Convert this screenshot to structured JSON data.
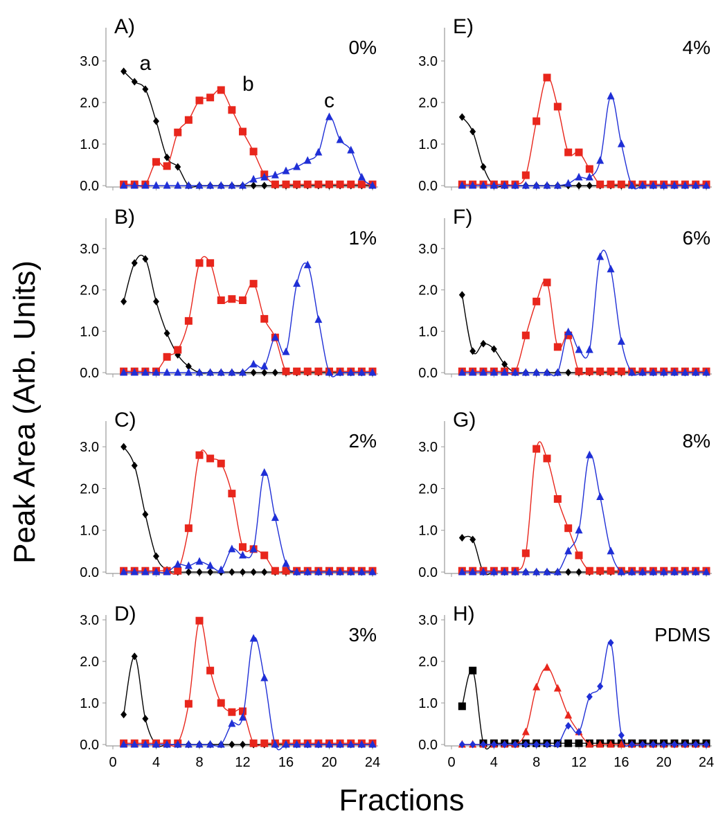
{
  "figure": {
    "ylabel": "Peak Area (Arb. Units)",
    "xlabel": "Fractions"
  },
  "colors": {
    "a": "#000000",
    "b": "#e8261c",
    "c": "#1f2fd6"
  },
  "chart_data": [
    {
      "type": "line",
      "label": "A)",
      "condition": "0%",
      "x": [
        1,
        2,
        3,
        4,
        5,
        6,
        7,
        8,
        9,
        10,
        11,
        12,
        13,
        14,
        15,
        16,
        17,
        18,
        19,
        20,
        21,
        22,
        23,
        24
      ],
      "ylim": [
        0,
        3.3
      ],
      "annotations": [
        {
          "text": "a",
          "x": 3,
          "y": 2.95
        },
        {
          "text": "b",
          "x": 12.5,
          "y": 2.45
        },
        {
          "text": "c",
          "x": 20,
          "y": 2.05
        }
      ],
      "series": [
        {
          "id": "a",
          "marker": "diamond",
          "values": [
            2.75,
            2.5,
            2.32,
            1.55,
            0.68,
            0.45,
            0,
            0,
            0,
            0,
            0,
            0,
            0,
            0,
            0,
            0,
            0,
            0,
            0,
            0,
            0,
            0,
            0,
            0
          ]
        },
        {
          "id": "b",
          "marker": "square",
          "values": [
            0.03,
            0.03,
            0.03,
            0.57,
            0.47,
            1.28,
            1.58,
            2.05,
            2.12,
            2.3,
            1.82,
            1.3,
            0.82,
            0.27,
            0.03,
            0.03,
            0.03,
            0.03,
            0.03,
            0.03,
            0.03,
            0.03,
            0.03,
            0.03
          ]
        },
        {
          "id": "c",
          "marker": "triangle",
          "values": [
            0,
            0,
            0,
            0,
            0,
            0,
            0,
            0,
            0,
            0,
            0,
            0,
            0.15,
            0.2,
            0.25,
            0.35,
            0.45,
            0.6,
            0.8,
            1.65,
            1.1,
            0.85,
            0.2,
            0
          ]
        }
      ]
    },
    {
      "type": "line",
      "label": "E)",
      "condition": "4%",
      "x": [
        1,
        2,
        3,
        4,
        5,
        6,
        7,
        8,
        9,
        10,
        11,
        12,
        13,
        14,
        15,
        16,
        17,
        18,
        19,
        20,
        21,
        22,
        23,
        24
      ],
      "ylim": [
        0,
        3.3
      ],
      "series": [
        {
          "id": "a",
          "marker": "diamond",
          "values": [
            1.65,
            1.3,
            0.45,
            0,
            0,
            0,
            0,
            0,
            0,
            0,
            0,
            0,
            0,
            0,
            0,
            0,
            0,
            0,
            0,
            0,
            0,
            0,
            0,
            0
          ]
        },
        {
          "id": "b",
          "marker": "square",
          "values": [
            0.03,
            0.03,
            0.03,
            0.03,
            0.03,
            0.03,
            0.25,
            1.55,
            2.6,
            1.9,
            0.8,
            0.8,
            0.4,
            0.03,
            0.03,
            0.03,
            0.03,
            0.03,
            0.03,
            0.03,
            0.03,
            0.03,
            0.03,
            0.03
          ]
        },
        {
          "id": "c",
          "marker": "triangle",
          "values": [
            0,
            0,
            0,
            0,
            0,
            0,
            0,
            0,
            0,
            0,
            0.05,
            0.2,
            0.2,
            0.6,
            2.15,
            1.0,
            0,
            0,
            0,
            0,
            0,
            0,
            0,
            0
          ]
        }
      ]
    },
    {
      "type": "line",
      "label": "B)",
      "condition": "1%",
      "x": [
        1,
        2,
        3,
        4,
        5,
        6,
        7,
        8,
        9,
        10,
        11,
        12,
        13,
        14,
        15,
        16,
        17,
        18,
        19,
        20,
        21,
        22,
        23,
        24
      ],
      "ylim": [
        0,
        3.3
      ],
      "series": [
        {
          "id": "a",
          "marker": "diamond",
          "values": [
            1.72,
            2.65,
            2.75,
            1.72,
            0.95,
            0.43,
            0.15,
            0,
            0,
            0,
            0,
            0,
            0,
            0,
            0,
            0,
            0,
            0,
            0,
            0,
            0,
            0,
            0,
            0
          ]
        },
        {
          "id": "b",
          "marker": "square",
          "values": [
            0.03,
            0.03,
            0.03,
            0.03,
            0.38,
            0.55,
            1.25,
            2.65,
            2.65,
            1.75,
            1.78,
            1.75,
            2.15,
            1.3,
            0.85,
            0.03,
            0.03,
            0.03,
            0.03,
            0.03,
            0.03,
            0.03,
            0.03,
            0.03
          ]
        },
        {
          "id": "c",
          "marker": "triangle",
          "values": [
            0,
            0,
            0,
            0,
            0,
            0,
            0,
            0,
            0,
            0,
            0,
            0,
            0.2,
            0.15,
            0.85,
            0.5,
            2.15,
            2.6,
            1.28,
            0,
            0,
            0,
            0,
            0
          ]
        }
      ]
    },
    {
      "type": "line",
      "label": "F)",
      "condition": "6%",
      "x": [
        1,
        2,
        3,
        4,
        5,
        6,
        7,
        8,
        9,
        10,
        11,
        12,
        13,
        14,
        15,
        16,
        17,
        18,
        19,
        20,
        21,
        22,
        23,
        24
      ],
      "ylim": [
        0,
        3.3
      ],
      "series": [
        {
          "id": "a",
          "marker": "diamond",
          "values": [
            1.88,
            0.52,
            0.7,
            0.57,
            0.2,
            0,
            0,
            0,
            0,
            0,
            0,
            0,
            0,
            0,
            0,
            0,
            0,
            0,
            0,
            0,
            0,
            0,
            0,
            0
          ]
        },
        {
          "id": "b",
          "marker": "square",
          "values": [
            0.03,
            0.03,
            0.03,
            0.03,
            0.03,
            0.03,
            0.9,
            1.72,
            2.18,
            0.62,
            0.9,
            0.03,
            0.03,
            0.03,
            0.03,
            0.03,
            0.03,
            0.03,
            0.03,
            0.03,
            0.03,
            0.03,
            0.03,
            0.03
          ]
        },
        {
          "id": "c",
          "marker": "triangle",
          "values": [
            0,
            0,
            0,
            0,
            0,
            0,
            0,
            0,
            0,
            0,
            0.98,
            0.55,
            0.55,
            2.8,
            2.5,
            0.75,
            0,
            0,
            0,
            0,
            0,
            0,
            0,
            0
          ]
        }
      ]
    },
    {
      "type": "line",
      "label": "C)",
      "condition": "2%",
      "x": [
        1,
        2,
        3,
        4,
        5,
        6,
        7,
        8,
        9,
        10,
        11,
        12,
        13,
        14,
        15,
        16,
        17,
        18,
        19,
        20,
        21,
        22,
        23,
        24
      ],
      "ylim": [
        0,
        3.3
      ],
      "series": [
        {
          "id": "a",
          "marker": "diamond",
          "values": [
            3.0,
            2.55,
            1.38,
            0.38,
            0.05,
            0,
            0,
            0,
            0,
            0,
            0,
            0,
            0,
            0,
            0,
            0,
            0,
            0,
            0,
            0,
            0,
            0,
            0,
            0
          ]
        },
        {
          "id": "b",
          "marker": "square",
          "values": [
            0.03,
            0.03,
            0.03,
            0.03,
            0.03,
            0.03,
            1.05,
            2.8,
            2.72,
            2.6,
            1.88,
            0.6,
            0.55,
            0.4,
            0.03,
            0.03,
            0.03,
            0.03,
            0.03,
            0.03,
            0.03,
            0.03,
            0.03,
            0.03
          ]
        },
        {
          "id": "c",
          "marker": "triangle",
          "values": [
            0,
            0,
            0,
            0,
            0,
            0.18,
            0.15,
            0.25,
            0.15,
            0.05,
            0.55,
            0.4,
            0.55,
            2.38,
            1.3,
            0.2,
            0,
            0,
            0,
            0,
            0,
            0,
            0,
            0
          ]
        }
      ]
    },
    {
      "type": "line",
      "label": "G)",
      "condition": "8%",
      "x": [
        1,
        2,
        3,
        4,
        5,
        6,
        7,
        8,
        9,
        10,
        11,
        12,
        13,
        14,
        15,
        16,
        17,
        18,
        19,
        20,
        21,
        22,
        23,
        24
      ],
      "ylim": [
        0,
        3.3
      ],
      "series": [
        {
          "id": "a",
          "marker": "diamond",
          "values": [
            0.82,
            0.78,
            0,
            0,
            0,
            0,
            0,
            0,
            0,
            0,
            0,
            0,
            0,
            0,
            0,
            0,
            0,
            0,
            0,
            0,
            0,
            0,
            0,
            0
          ]
        },
        {
          "id": "b",
          "marker": "square",
          "values": [
            0.03,
            0.03,
            0.03,
            0.03,
            0.03,
            0.03,
            0.45,
            2.95,
            2.72,
            1.75,
            1.05,
            0.4,
            0.03,
            0.03,
            0.03,
            0.03,
            0.03,
            0.03,
            0.03,
            0.03,
            0.03,
            0.03,
            0.03,
            0.03
          ]
        },
        {
          "id": "c",
          "marker": "triangle",
          "values": [
            0,
            0,
            0,
            0,
            0,
            0,
            0,
            0,
            0,
            0,
            0.5,
            1.0,
            2.8,
            1.8,
            0.5,
            0,
            0,
            0,
            0,
            0,
            0,
            0,
            0,
            0
          ]
        }
      ]
    },
    {
      "type": "line",
      "label": "D)",
      "condition": "3%",
      "x": [
        1,
        2,
        3,
        4,
        5,
        6,
        7,
        8,
        9,
        10,
        11,
        12,
        13,
        14,
        15,
        16,
        17,
        18,
        19,
        20,
        21,
        22,
        23,
        24
      ],
      "ylim": [
        0,
        3.3
      ],
      "series": [
        {
          "id": "a",
          "marker": "diamond",
          "values": [
            0.72,
            2.12,
            0.62,
            0,
            0,
            0,
            0,
            0,
            0,
            0,
            0,
            0,
            0,
            0,
            0,
            0,
            0,
            0,
            0,
            0,
            0,
            0,
            0,
            0
          ]
        },
        {
          "id": "b",
          "marker": "square",
          "values": [
            0.03,
            0.03,
            0.03,
            0.03,
            0.03,
            0.03,
            0.98,
            2.98,
            1.78,
            1.0,
            0.78,
            0.8,
            0.03,
            0.03,
            0.03,
            0.03,
            0.03,
            0.03,
            0.03,
            0.03,
            0.03,
            0.03,
            0.03,
            0.03
          ]
        },
        {
          "id": "c",
          "marker": "triangle",
          "values": [
            0,
            0,
            0,
            0,
            0,
            0,
            0,
            0,
            0,
            0,
            0.5,
            0.65,
            2.55,
            1.6,
            0,
            0,
            0,
            0,
            0,
            0,
            0,
            0,
            0,
            0
          ]
        }
      ]
    },
    {
      "type": "line",
      "label": "H)",
      "condition": "PDMS",
      "x": [
        1,
        2,
        3,
        4,
        5,
        6,
        7,
        8,
        9,
        10,
        11,
        12,
        13,
        14,
        15,
        16,
        17,
        18,
        19,
        20,
        21,
        22,
        23,
        24
      ],
      "ylim": [
        0,
        3.3
      ],
      "series": [
        {
          "id": "a",
          "marker": "square",
          "values": [
            0.92,
            1.78,
            0.03,
            0.03,
            0.03,
            0.03,
            0.03,
            0.03,
            0.03,
            0.03,
            0.03,
            0.03,
            0.03,
            0.03,
            0.03,
            0.03,
            0.03,
            0.03,
            0.03,
            0.03,
            0.03,
            0.03,
            0.03,
            0.03
          ]
        },
        {
          "id": "b",
          "marker": "triangle",
          "values": [
            0,
            0,
            0,
            0,
            0,
            0,
            0.3,
            1.38,
            1.85,
            1.35,
            0.7,
            0.3,
            0,
            0,
            0,
            0,
            0,
            0,
            0,
            0,
            0,
            0,
            0,
            0
          ]
        },
        {
          "id": "c",
          "marker": "diamond",
          "values": [
            0,
            0,
            0,
            0,
            0,
            0,
            0,
            0,
            0,
            0,
            0.45,
            0.3,
            1.15,
            1.4,
            2.45,
            0.22,
            0,
            0,
            0,
            0,
            0,
            0,
            0,
            0
          ]
        }
      ]
    }
  ],
  "axes": {
    "y_ticks": [
      "0.0",
      "1.0",
      "2.0",
      "3.0"
    ],
    "x_ticks": [
      "0",
      "4",
      "8",
      "12",
      "16",
      "20",
      "24"
    ]
  }
}
